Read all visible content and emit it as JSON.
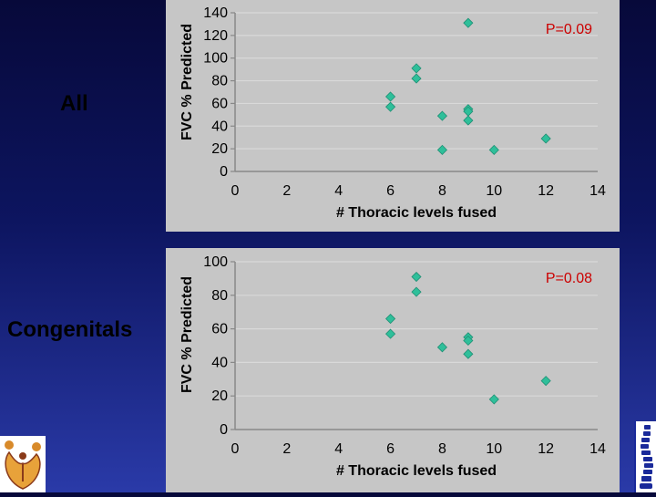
{
  "labels": {
    "row1": "All",
    "row2": "Congenitals"
  },
  "logos": {
    "left": "family-figures-logo",
    "right": "spine-logo"
  },
  "chart_data": [
    {
      "type": "scatter",
      "ylabel": "FVC % Predicted",
      "xlabel": "# Thoracic levels fused",
      "annotation": "P=0.09",
      "xlim": [
        0,
        14
      ],
      "ylim": [
        0,
        140
      ],
      "xticks": [
        0,
        2,
        4,
        6,
        8,
        10,
        12,
        14
      ],
      "yticks": [
        0,
        20,
        40,
        60,
        80,
        100,
        120,
        140
      ],
      "grid": true,
      "marker_color": "#2fbf9a",
      "points": [
        {
          "x": 6,
          "y": 66
        },
        {
          "x": 6,
          "y": 57
        },
        {
          "x": 7,
          "y": 91
        },
        {
          "x": 7,
          "y": 82
        },
        {
          "x": 8,
          "y": 49
        },
        {
          "x": 8,
          "y": 19
        },
        {
          "x": 9,
          "y": 131
        },
        {
          "x": 9,
          "y": 55
        },
        {
          "x": 9,
          "y": 53
        },
        {
          "x": 9,
          "y": 45
        },
        {
          "x": 10,
          "y": 19
        },
        {
          "x": 12,
          "y": 29
        }
      ]
    },
    {
      "type": "scatter",
      "ylabel": "FVC % Predicted",
      "xlabel": "# Thoracic levels fused",
      "annotation": "P=0.08",
      "xlim": [
        0,
        14
      ],
      "ylim": [
        0,
        100
      ],
      "xticks": [
        0,
        2,
        4,
        6,
        8,
        10,
        12,
        14
      ],
      "yticks": [
        0,
        20,
        40,
        60,
        80,
        100
      ],
      "grid": true,
      "marker_color": "#2fbf9a",
      "points": [
        {
          "x": 6,
          "y": 66
        },
        {
          "x": 6,
          "y": 57
        },
        {
          "x": 7,
          "y": 91
        },
        {
          "x": 7,
          "y": 82
        },
        {
          "x": 8,
          "y": 49
        },
        {
          "x": 9,
          "y": 55
        },
        {
          "x": 9,
          "y": 53
        },
        {
          "x": 9,
          "y": 45
        },
        {
          "x": 10,
          "y": 18
        },
        {
          "x": 12,
          "y": 29
        }
      ]
    }
  ]
}
